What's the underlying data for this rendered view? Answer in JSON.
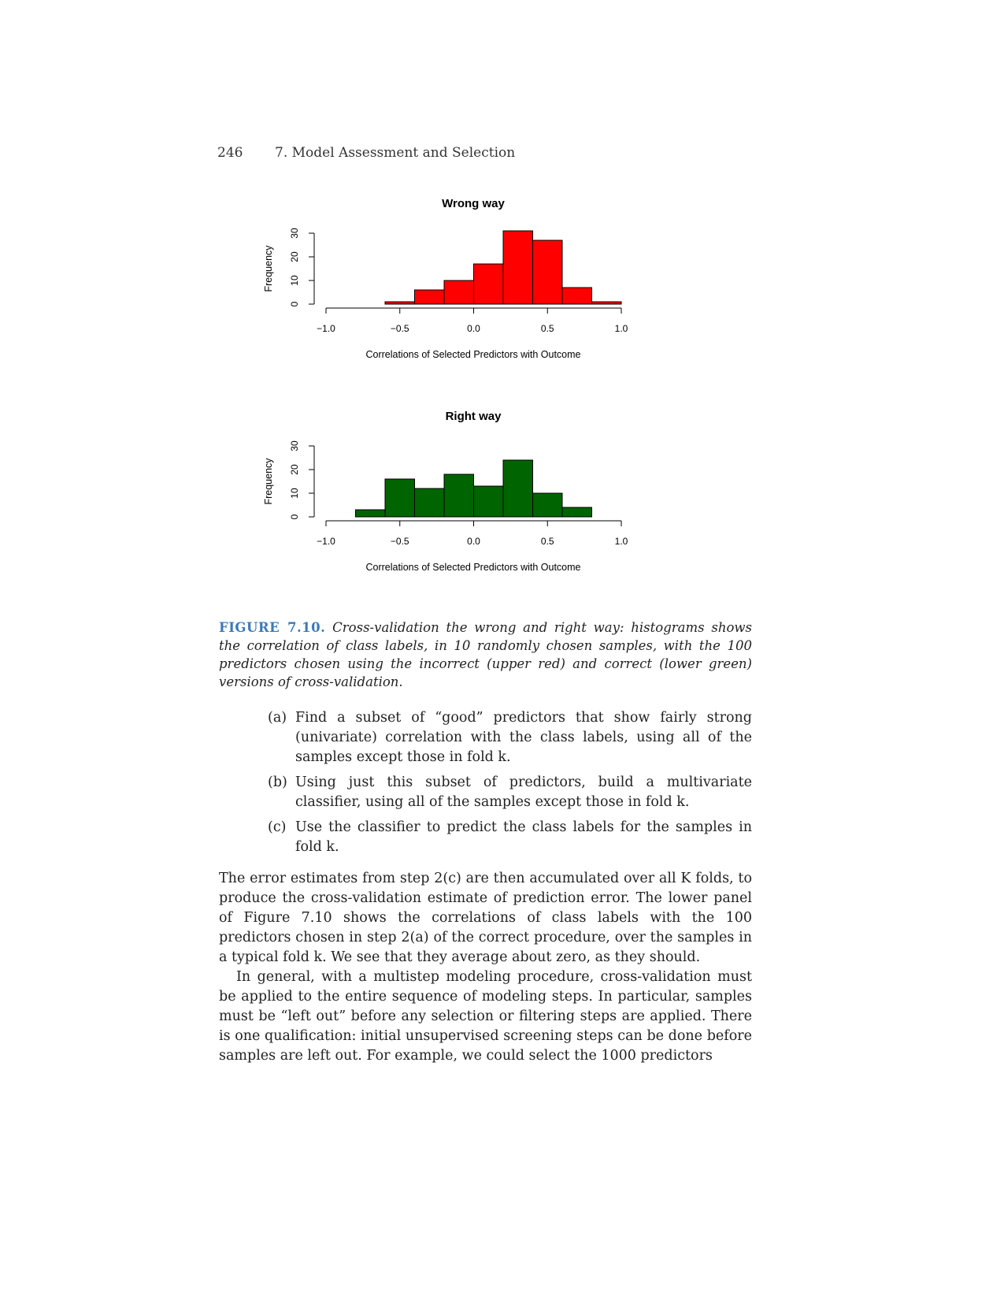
{
  "header": {
    "page_number": "246",
    "chapter": "7. Model Assessment and Selection"
  },
  "colors": {
    "wrong_fill": "#ff0000",
    "right_fill": "#006400",
    "figure_label": "#3a7ab8"
  },
  "chart_data": [
    {
      "type": "bar",
      "title": "Wrong way",
      "xlabel": "Correlations of Selected Predictors with Outcome",
      "ylabel": "Frequency",
      "bin_edges": [
        -0.6,
        -0.4,
        -0.2,
        0.0,
        0.2,
        0.4,
        0.6,
        0.8,
        1.0
      ],
      "values": [
        1,
        6,
        10,
        17,
        31,
        27,
        7,
        1
      ],
      "xlim": [
        -1.0,
        1.0
      ],
      "ylim": [
        0,
        30
      ],
      "xticks": [
        "−1.0",
        "−0.5",
        "0.0",
        "0.5",
        "1.0"
      ],
      "yticks": [
        "0",
        "10",
        "20",
        "30"
      ],
      "fill": "red",
      "grid": false
    },
    {
      "type": "bar",
      "title": "Right way",
      "xlabel": "Correlations of Selected Predictors with Outcome",
      "ylabel": "Frequency",
      "bin_edges": [
        -0.8,
        -0.6,
        -0.4,
        -0.2,
        0.0,
        0.2,
        0.4,
        0.6,
        0.8
      ],
      "values": [
        3,
        16,
        12,
        18,
        13,
        24,
        10,
        4
      ],
      "xlim": [
        -1.0,
        1.0
      ],
      "ylim": [
        0,
        30
      ],
      "xticks": [
        "−1.0",
        "−0.5",
        "0.0",
        "0.5",
        "1.0"
      ],
      "yticks": [
        "0",
        "10",
        "20",
        "30"
      ],
      "fill": "darkgreen",
      "grid": false
    }
  ],
  "caption": {
    "label": "FIGURE 7.10.",
    "text": "Cross-validation the wrong and right way: histograms shows the correlation of class labels, in 10 randomly chosen samples, with the 100 predictors chosen using the incorrect (upper red) and correct (lower green) versions of cross-validation."
  },
  "steps": [
    {
      "label": "(a)",
      "text": "Find a subset of “good” predictors that show fairly strong (univariate) correlation with the class labels, using all of the samples except those in fold k."
    },
    {
      "label": "(b)",
      "text": "Using just this subset of predictors, build a multivariate classifier, using all of the samples except those in fold k."
    },
    {
      "label": "(c)",
      "text": "Use the classifier to predict the class labels for the samples in fold k."
    }
  ],
  "body": {
    "p1": "The error estimates from step 2(c) are then accumulated over all K folds, to produce the cross-validation estimate of prediction error. The lower panel of Figure 7.10 shows the correlations of class labels with the 100 predictors chosen in step 2(a) of the correct procedure, over the samples in a typical fold k. We see that they average about zero, as they should.",
    "p2": "In general, with a multistep modeling procedure, cross-validation must be applied to the entire sequence of modeling steps. In particular, samples must be “left out” before any selection or filtering steps are applied. There is one qualification: initial unsupervised screening steps can be done before samples are left out. For example, we could select the 1000 predictors"
  }
}
